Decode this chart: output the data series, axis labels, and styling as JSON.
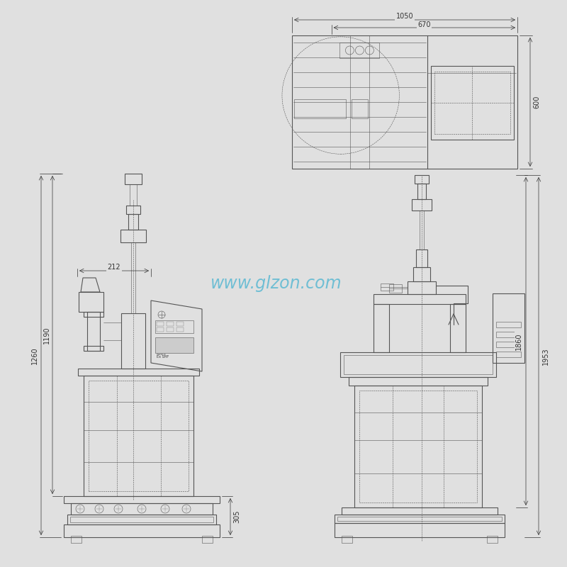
{
  "bg_color": "#e0e0e0",
  "drawing_color": "#555555",
  "dim_color": "#333333",
  "watermark_color": "#4ab3d0",
  "watermark_text": "www.glzon.com",
  "dimensions": {
    "top_view": {
      "width_1050": "1050",
      "width_670": "670",
      "height_600": "600"
    },
    "front_left": {
      "dim_212": "212",
      "dim_1260": "1260",
      "dim_1190": "1190",
      "dim_305": "305"
    },
    "front_right": {
      "dim_1860": "1860",
      "dim_1953": "1953"
    }
  }
}
